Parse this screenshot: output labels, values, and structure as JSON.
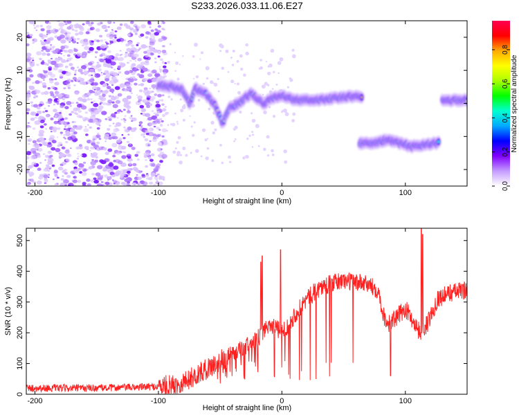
{
  "title": "S233.2026.033.11.06.E27",
  "chart_data": [
    {
      "type": "heatmap",
      "id": "spectrogram",
      "xlabel": "Height of straight line (km)",
      "ylabel": "Frequency (Hz)",
      "xlim": [
        -207,
        150
      ],
      "ylim": [
        -25,
        25
      ],
      "xticks": [
        -200,
        -100,
        0,
        100
      ],
      "yticks": [
        -20,
        -10,
        0,
        10,
        20
      ],
      "colorbar": {
        "label": "Normalized spectral amplitude",
        "range": [
          0,
          1
        ],
        "ticks": [
          "0.0",
          "0.2",
          "0.4",
          "0.6",
          "0.8"
        ],
        "colors": [
          "#ffffff",
          "#c49bff",
          "#8000ff",
          "#0000ff",
          "#00aaff",
          "#00ffd0",
          "#00ff00",
          "#aaff00",
          "#ffff00",
          "#ffaa00",
          "#ff0000",
          "#ff0050"
        ]
      },
      "noise_region_x": [
        -207,
        -100
      ],
      "ridge_segments": [
        {
          "x": [
            -100,
            -88,
            -80,
            -75,
            -70,
            -62,
            -55,
            -48,
            -42,
            -35,
            -25,
            -15,
            -5,
            0,
            10,
            25,
            40,
            55,
            65
          ],
          "freq": [
            5.5,
            5.0,
            4.0,
            0,
            4.5,
            3.0,
            0,
            -6.0,
            -1.0,
            0,
            3.0,
            0,
            2.0,
            2.5,
            1.0,
            1.0,
            1.5,
            2.0,
            2.0
          ]
        },
        {
          "x": [
            63,
            75,
            85,
            95,
            105,
            115,
            127
          ],
          "freq": [
            -12.0,
            -12.0,
            -11.0,
            -12.0,
            -13.0,
            -12.5,
            -12.0
          ]
        },
        {
          "x": [
            130,
            140,
            150
          ],
          "freq": [
            1.0,
            1.0,
            1.0
          ]
        }
      ]
    },
    {
      "type": "line",
      "id": "snr",
      "xlabel": "Height of straight line (km)",
      "ylabel": "SNR (10 * v/v)",
      "xlim": [
        -207,
        150
      ],
      "ylim": [
        0,
        540
      ],
      "xticks": [
        -200,
        -100,
        0,
        100
      ],
      "yticks": [
        0,
        100,
        200,
        300,
        400,
        500
      ],
      "color": "#ff2020",
      "baseline": {
        "x": [
          -207,
          -150,
          -100,
          -85,
          -70,
          -50,
          -40,
          -20,
          -10,
          0,
          10,
          20,
          30,
          40,
          50,
          60,
          70,
          78,
          82,
          86,
          92,
          100,
          106,
          112,
          118,
          126,
          136,
          150
        ],
        "y": [
          20,
          20,
          25,
          30,
          60,
          110,
          130,
          180,
          230,
          200,
          255,
          310,
          345,
          360,
          370,
          365,
          355,
          340,
          260,
          230,
          245,
          280,
          240,
          200,
          230,
          310,
          330,
          340
        ]
      },
      "spikes": [
        {
          "x": -17,
          "y": 430
        },
        {
          "x": -16,
          "y": 450
        },
        {
          "x": -1,
          "y": 470
        },
        {
          "x": 113,
          "y": 540
        },
        {
          "x": 114,
          "y": 520
        },
        {
          "x": 88,
          "y": 60
        }
      ]
    }
  ]
}
